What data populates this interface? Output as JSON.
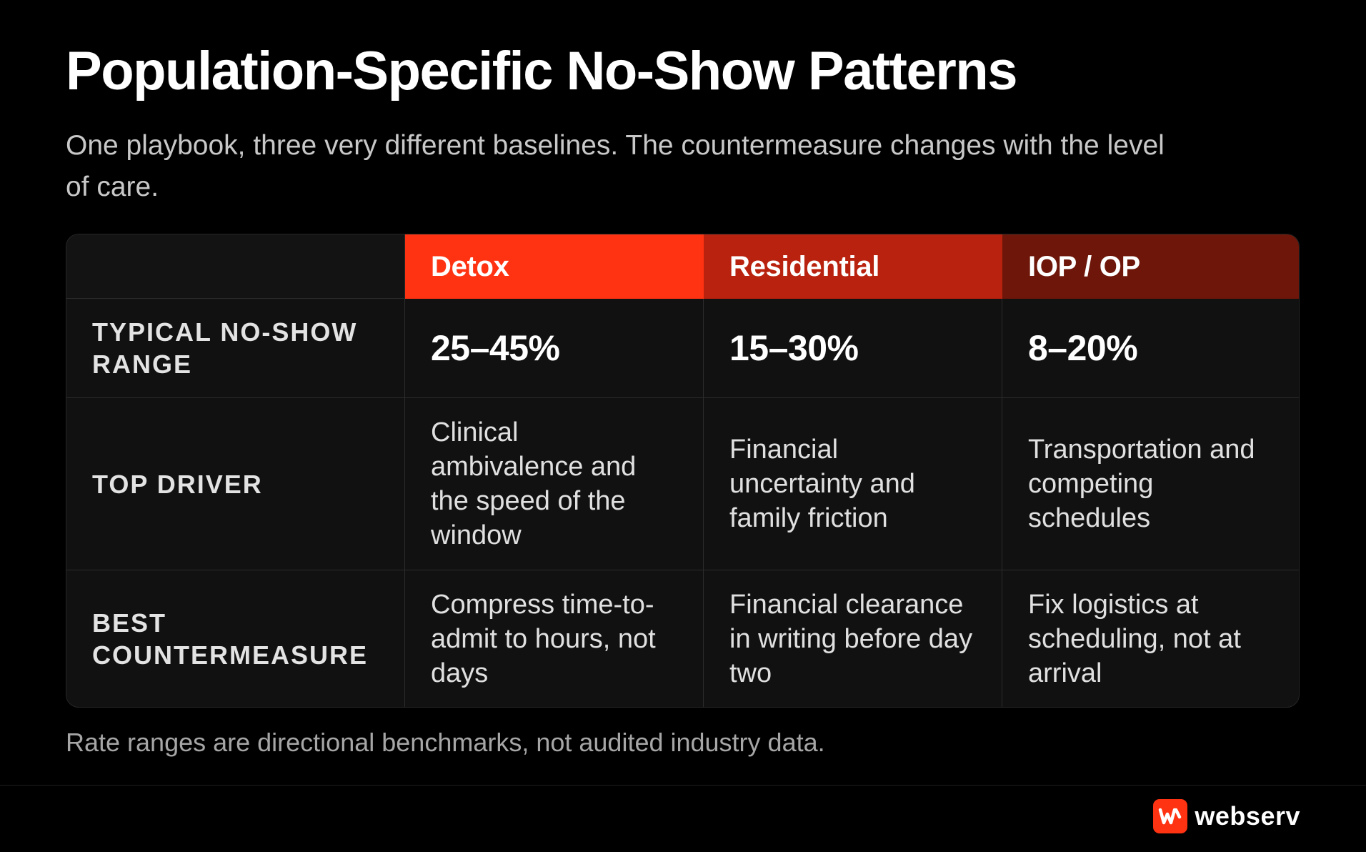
{
  "header": {
    "title": "Population-Specific No-Show Patterns",
    "subtitle": "One playbook, three very different baselines. The countermeasure changes with the level of care."
  },
  "table": {
    "columns": [
      "Detox",
      "Residential",
      "IOP / OP"
    ],
    "column_colors": [
      "#ff3312",
      "#b9220e",
      "#6e1609"
    ],
    "rows": [
      {
        "label": "Typical No-Show Range",
        "cells": [
          "25–45%",
          "15–30%",
          "8–20%"
        ]
      },
      {
        "label": "Top Driver",
        "cells": [
          "Clinical ambivalence and the speed of the window",
          "Financial uncertainty and family friction",
          "Transportation and competing schedules"
        ]
      },
      {
        "label": "Best Countermeasure",
        "cells": [
          "Compress time-to-admit to hours, not days",
          "Financial clearance in writing before day two",
          "Fix logistics at scheduling, not at arrival"
        ]
      }
    ]
  },
  "footnote": "Rate ranges are directional benchmarks, not audited industry data.",
  "brand": {
    "name": "webserv",
    "icon": "webserv-logo-icon",
    "color": "#ff3312"
  }
}
